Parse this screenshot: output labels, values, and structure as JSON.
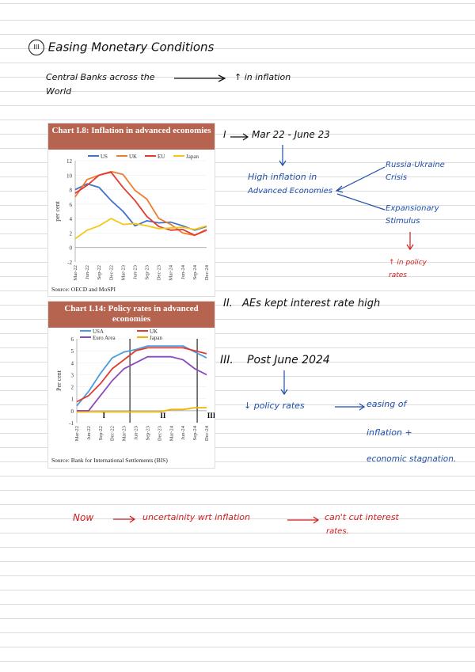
{
  "heading": "Easing Monetary Conditions",
  "heading_num": "III",
  "intro": {
    "left": "Central Banks across the",
    "right": "↑ in inflation",
    "line2": "World"
  },
  "chart1": {
    "title": "Chart I.8: Inflation in advanced economies",
    "source": "Source: OECD and MoSPI",
    "chart_data": {
      "type": "line",
      "ylabel": "per cent",
      "ylim": [
        -2,
        12
      ],
      "yticks": [
        -2,
        0,
        2,
        4,
        6,
        8,
        10,
        12
      ],
      "categories": [
        "Mar-22",
        "Jun-22",
        "Sep-22",
        "Dec-22",
        "Mar-23",
        "Jun-23",
        "Sep-23",
        "Dec-23",
        "Mar-24",
        "Jun-24",
        "Sep-24",
        "Dec-24"
      ],
      "series": [
        {
          "name": "US",
          "color": "#4472c4",
          "values": [
            8.0,
            8.8,
            8.3,
            6.5,
            5.0,
            3.0,
            3.7,
            3.4,
            3.5,
            3.0,
            2.4,
            2.9
          ]
        },
        {
          "name": "UK",
          "color": "#ed7d31",
          "values": [
            7.0,
            9.4,
            10.0,
            10.5,
            10.1,
            7.9,
            6.7,
            4.0,
            3.2,
            2.0,
            1.7,
            2.5
          ]
        },
        {
          "name": "EU",
          "color": "#e03c31",
          "values": [
            7.5,
            8.6,
            10.0,
            10.4,
            8.3,
            6.5,
            4.3,
            2.9,
            2.4,
            2.5,
            1.7,
            2.4
          ]
        },
        {
          "name": "Japan",
          "color": "#f5c518",
          "values": [
            1.2,
            2.4,
            3.0,
            4.0,
            3.2,
            3.3,
            3.0,
            2.6,
            2.7,
            2.8,
            2.5,
            3.0
          ]
        }
      ]
    }
  },
  "chart2": {
    "title": "Chart I.14: Policy rates in advanced economies",
    "source": "Source: Bank for International Settlements (BIS)",
    "chart_data": {
      "type": "line",
      "ylabel": "Per cent",
      "ylim": [
        -1,
        6
      ],
      "yticks": [
        -1,
        0,
        1,
        2,
        3,
        4,
        5,
        6
      ],
      "categories": [
        "Mar-22",
        "Jun-22",
        "Sep-22",
        "Dec-22",
        "Mar-23",
        "Jun-23",
        "Sep-23",
        "Dec-23",
        "Mar-24",
        "Jun-24",
        "Sep-24",
        "Dec-24"
      ],
      "phase_labels": [
        "I",
        "II",
        "III"
      ],
      "series": [
        {
          "name": "USA",
          "color": "#4a9de0",
          "values": [
            0.4,
            1.6,
            3.1,
            4.4,
            4.9,
            5.1,
            5.4,
            5.4,
            5.4,
            5.4,
            4.9,
            4.4
          ]
        },
        {
          "name": "UK",
          "color": "#e03c31",
          "values": [
            0.75,
            1.25,
            2.25,
            3.5,
            4.25,
            5.0,
            5.25,
            5.25,
            5.25,
            5.25,
            5.0,
            4.75
          ]
        },
        {
          "name": "Euro Area",
          "color": "#8a4bbf",
          "values": [
            0.0,
            0.0,
            1.25,
            2.5,
            3.5,
            4.0,
            4.5,
            4.5,
            4.5,
            4.25,
            3.5,
            3.0
          ]
        },
        {
          "name": "Japan",
          "color": "#f0b400",
          "values": [
            -0.1,
            -0.1,
            -0.1,
            -0.1,
            -0.1,
            -0.1,
            -0.1,
            -0.1,
            0.1,
            0.1,
            0.25,
            0.25
          ]
        }
      ]
    }
  },
  "notes": {
    "n1_label": "I",
    "n1_text": "Mar 22 - June 23",
    "high_inflation": "High inflation in",
    "adv_econ": "Advanced Economies",
    "russia1": "Russia-Ukraine",
    "russia2": "Crisis",
    "exp1": "Expansionary",
    "exp2": "Stimulus",
    "policy1": "↑ in policy",
    "policy2": "rates",
    "n2_label": "II.",
    "n2_text": "AEs kept interest rate high",
    "n3_label": "III.",
    "n3_text": "Post June 2024",
    "down_policy": "↓ policy rates",
    "easing": "easing of",
    "inflation_plus": "inflation +",
    "econ_stag": "economic stagnation.",
    "now": "Now",
    "uncertainty": "uncertainity wrt inflation",
    "cant_cut": "can't cut interest",
    "rates": "rates."
  }
}
